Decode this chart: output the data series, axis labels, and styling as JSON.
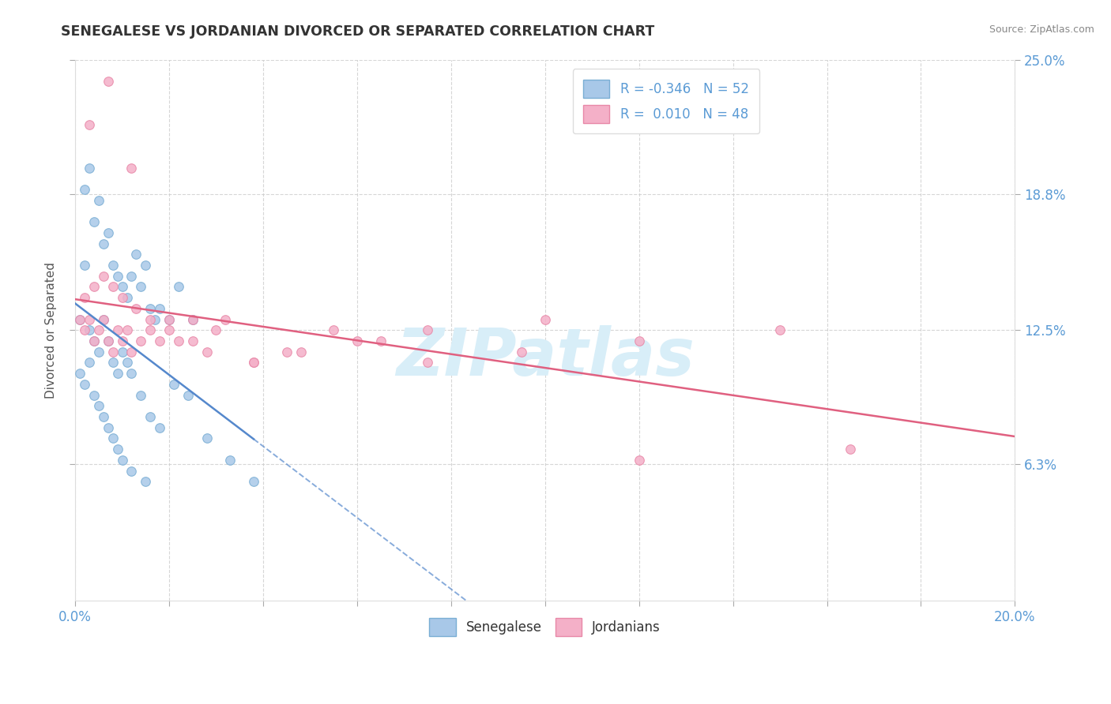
{
  "title": "SENEGALESE VS JORDANIAN DIVORCED OR SEPARATED CORRELATION CHART",
  "source_text": "Source: ZipAtlas.com",
  "xlim": [
    0.0,
    0.2
  ],
  "ylim": [
    0.0,
    0.25
  ],
  "ylabel": "Divorced or Separated",
  "senegalese_R": -0.346,
  "senegalese_N": 52,
  "jordanian_R": 0.01,
  "jordanian_N": 48,
  "senegalese_dot_color": "#a8c8e8",
  "jordanian_dot_color": "#f4b0c8",
  "senegalese_edge_color": "#7aaed4",
  "jordanian_edge_color": "#e888a8",
  "senegalese_line_color": "#5588cc",
  "jordanian_line_color": "#e06080",
  "watermark": "ZIPatlas",
  "watermark_color": "#d8eef8",
  "background_color": "#ffffff",
  "grid_color": "#cccccc",
  "tick_label_color": "#5b9bd5",
  "title_color": "#333333",
  "source_color": "#888888",
  "legend_text_color": "#5b9bd5",
  "senegalese_x": [
    0.002,
    0.003,
    0.004,
    0.005,
    0.006,
    0.007,
    0.008,
    0.009,
    0.01,
    0.011,
    0.012,
    0.013,
    0.014,
    0.015,
    0.016,
    0.017,
    0.018,
    0.02,
    0.022,
    0.025,
    0.001,
    0.002,
    0.003,
    0.004,
    0.005,
    0.006,
    0.007,
    0.008,
    0.009,
    0.01,
    0.011,
    0.012,
    0.014,
    0.016,
    0.018,
    0.021,
    0.024,
    0.028,
    0.033,
    0.001,
    0.002,
    0.003,
    0.004,
    0.005,
    0.006,
    0.007,
    0.008,
    0.009,
    0.01,
    0.012,
    0.015,
    0.038
  ],
  "senegalese_y": [
    0.19,
    0.2,
    0.175,
    0.185,
    0.165,
    0.17,
    0.155,
    0.15,
    0.145,
    0.14,
    0.15,
    0.16,
    0.145,
    0.155,
    0.135,
    0.13,
    0.135,
    0.13,
    0.145,
    0.13,
    0.13,
    0.155,
    0.125,
    0.12,
    0.115,
    0.13,
    0.12,
    0.11,
    0.105,
    0.115,
    0.11,
    0.105,
    0.095,
    0.085,
    0.08,
    0.1,
    0.095,
    0.075,
    0.065,
    0.105,
    0.1,
    0.11,
    0.095,
    0.09,
    0.085,
    0.08,
    0.075,
    0.07,
    0.065,
    0.06,
    0.055,
    0.055
  ],
  "jordanian_x": [
    0.001,
    0.002,
    0.003,
    0.004,
    0.005,
    0.006,
    0.007,
    0.008,
    0.009,
    0.01,
    0.011,
    0.012,
    0.014,
    0.016,
    0.018,
    0.02,
    0.022,
    0.025,
    0.028,
    0.032,
    0.038,
    0.045,
    0.055,
    0.065,
    0.075,
    0.1,
    0.12,
    0.002,
    0.004,
    0.006,
    0.008,
    0.01,
    0.013,
    0.016,
    0.02,
    0.025,
    0.03,
    0.038,
    0.048,
    0.06,
    0.075,
    0.095,
    0.12,
    0.15,
    0.165,
    0.003,
    0.007,
    0.012
  ],
  "jordanian_y": [
    0.13,
    0.125,
    0.13,
    0.12,
    0.125,
    0.13,
    0.12,
    0.115,
    0.125,
    0.12,
    0.125,
    0.115,
    0.12,
    0.125,
    0.12,
    0.125,
    0.12,
    0.13,
    0.115,
    0.13,
    0.11,
    0.115,
    0.125,
    0.12,
    0.125,
    0.13,
    0.065,
    0.14,
    0.145,
    0.15,
    0.145,
    0.14,
    0.135,
    0.13,
    0.13,
    0.12,
    0.125,
    0.11,
    0.115,
    0.12,
    0.11,
    0.115,
    0.12,
    0.125,
    0.07,
    0.22,
    0.24,
    0.2
  ]
}
